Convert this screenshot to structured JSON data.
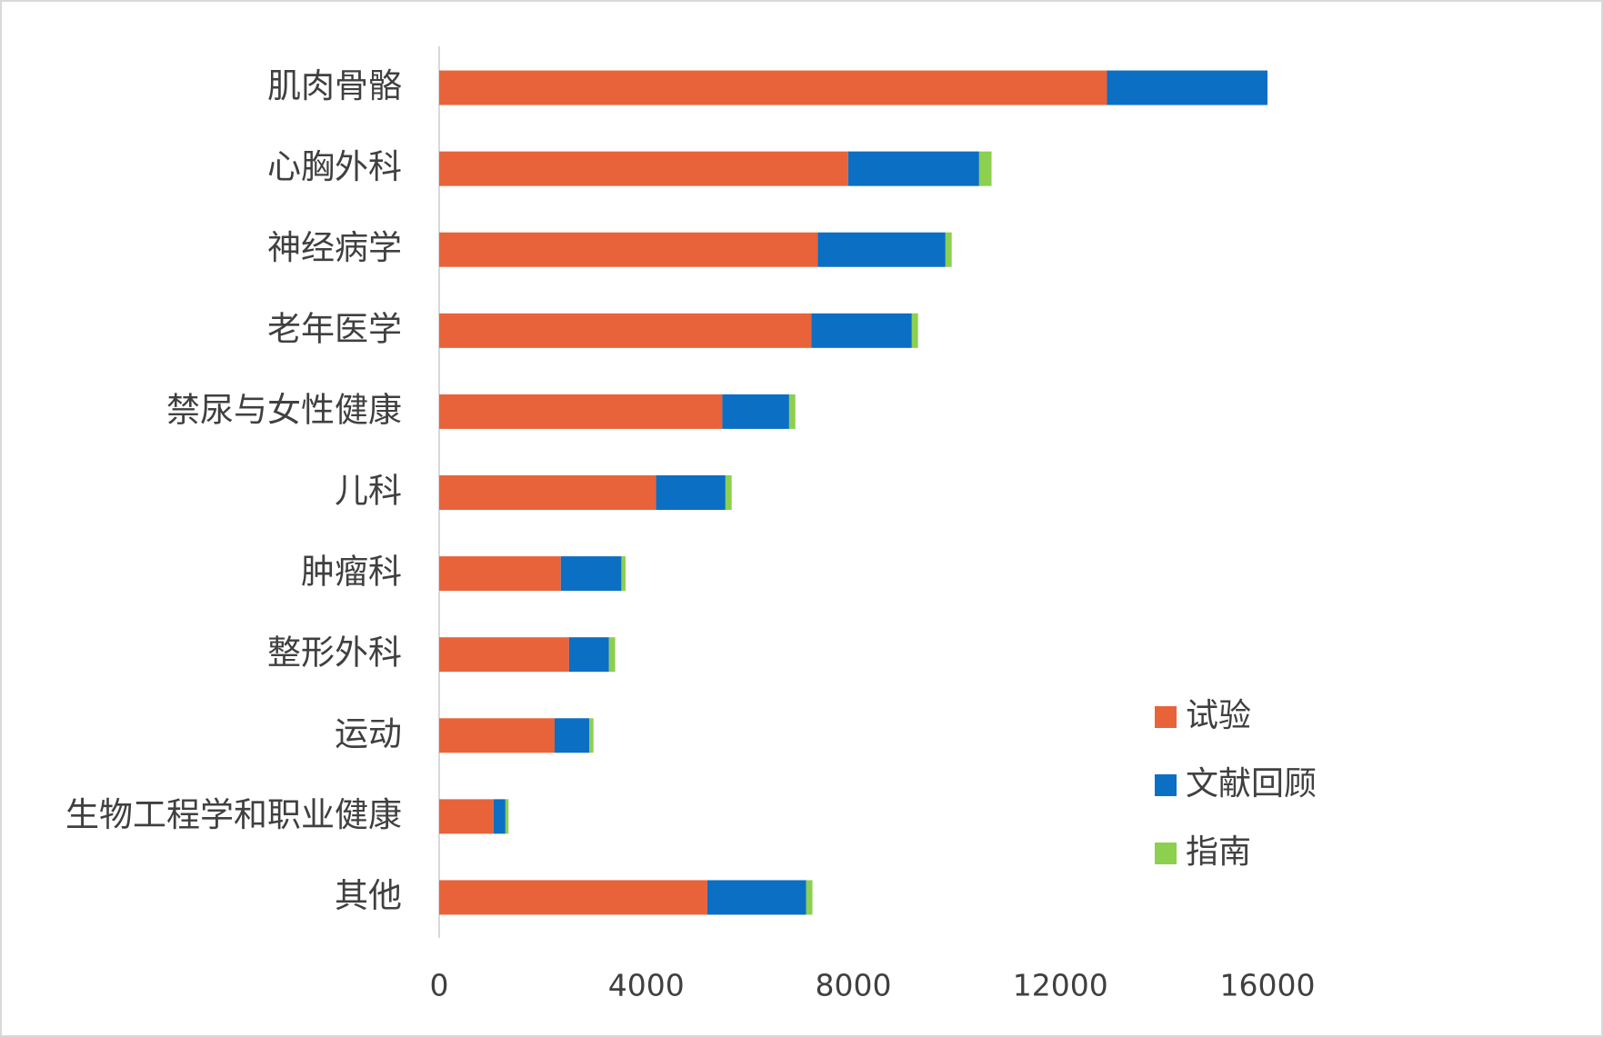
{
  "chart_data": {
    "type": "bar",
    "orientation": "horizontal",
    "stacked": true,
    "categories": [
      "肌肉骨骼",
      "心胸外科",
      "神经病学",
      "老年医学",
      "禁尿与女性健康",
      "儿科",
      "肿瘤科",
      "整形外科",
      "运动",
      "生物工程学和职业健康",
      "其他"
    ],
    "series": [
      {
        "name": "试验",
        "color": "#e8633a",
        "values": [
          12900,
          7900,
          7310,
          7190,
          5470,
          4190,
          2350,
          2510,
          2230,
          1050,
          5180
        ]
      },
      {
        "name": "文献回顾",
        "color": "#0b6fc4",
        "values": [
          3100,
          2530,
          2470,
          1940,
          1290,
          1340,
          1170,
          770,
          670,
          230,
          1910
        ]
      },
      {
        "name": "指南",
        "color": "#8dcf4f",
        "values": [
          0,
          240,
          120,
          120,
          120,
          120,
          80,
          120,
          80,
          60,
          120
        ]
      }
    ],
    "xlim": [
      0,
      16000
    ],
    "xticks": [
      0,
      4000,
      8000,
      12000,
      16000
    ],
    "grid": false,
    "legend": "right"
  }
}
